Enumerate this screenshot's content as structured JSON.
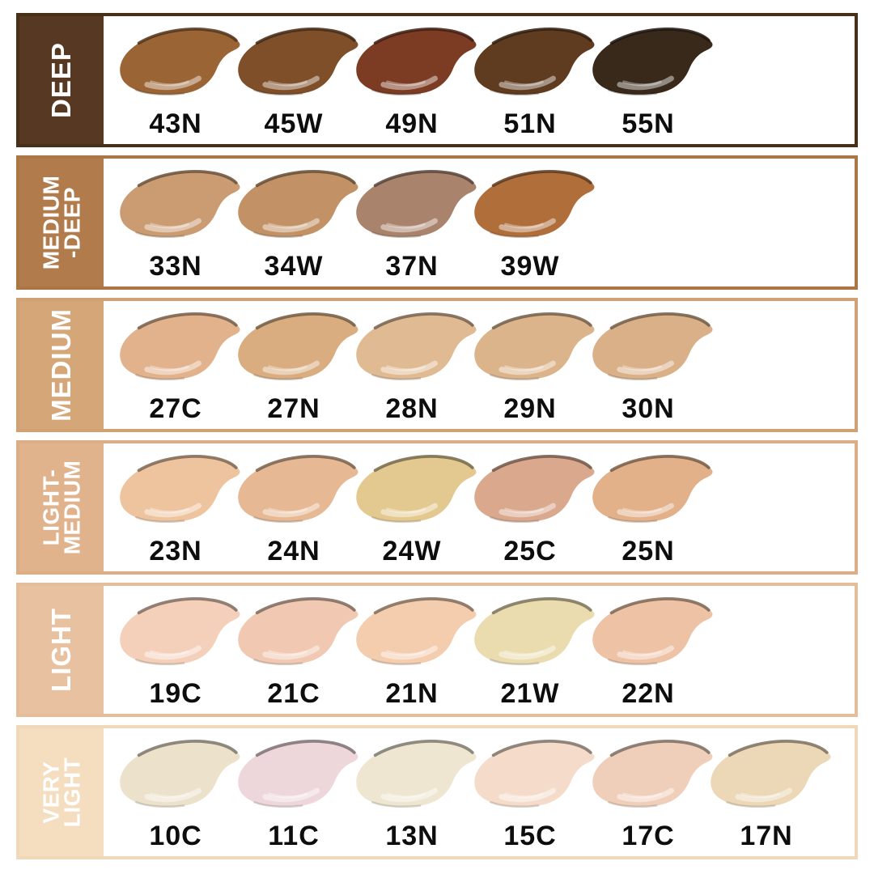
{
  "page": {
    "background": "#ffffff",
    "text_color": "#0d0d0d",
    "label_text_color": "#ffffff"
  },
  "rows": [
    {
      "category": "DEEP",
      "label": "DEEP",
      "accent": "#563823",
      "border": "#463019",
      "shades": [
        {
          "code": "43N",
          "color": "#9a6435"
        },
        {
          "code": "45W",
          "color": "#7e4f29"
        },
        {
          "code": "49N",
          "color": "#7c3b23"
        },
        {
          "code": "51N",
          "color": "#5f3b20"
        },
        {
          "code": "55N",
          "color": "#39291b"
        }
      ]
    },
    {
      "category": "MEDIUM-DEEP",
      "label": "MEDIUM\n-DEEP",
      "accent": "#b17b4c",
      "border": "#ab7546",
      "shades": [
        {
          "code": "33N",
          "color": "#cb9c72"
        },
        {
          "code": "34W",
          "color": "#c29266"
        },
        {
          "code": "37N",
          "color": "#a9836c"
        },
        {
          "code": "39W",
          "color": "#b06e3b"
        }
      ]
    },
    {
      "category": "MEDIUM",
      "label": "MEDIUM",
      "accent": "#d4a678",
      "border": "#cfa173",
      "shades": [
        {
          "code": "27C",
          "color": "#e2b28d"
        },
        {
          "code": "27N",
          "color": "#d9ad80"
        },
        {
          "code": "28N",
          "color": "#e0ba92"
        },
        {
          "code": "29N",
          "color": "#dcb48b"
        },
        {
          "code": "30N",
          "color": "#dab088"
        }
      ]
    },
    {
      "category": "LIGHT-MEDIUM",
      "label": "LIGHT-\nMEDIUM",
      "accent": "#e0b38d",
      "border": "#dcae88",
      "shades": [
        {
          "code": "23N",
          "color": "#eec49f"
        },
        {
          "code": "24N",
          "color": "#e6b893"
        },
        {
          "code": "24W",
          "color": "#e3c98f"
        },
        {
          "code": "25C",
          "color": "#d9a88d"
        },
        {
          "code": "25N",
          "color": "#e2b089"
        }
      ]
    },
    {
      "category": "LIGHT",
      "label": "LIGHT",
      "accent": "#e8c2a0",
      "border": "#e4bd9a",
      "shades": [
        {
          "code": "19C",
          "color": "#f4cfba"
        },
        {
          "code": "21C",
          "color": "#f1c9b2"
        },
        {
          "code": "21N",
          "color": "#f4ccae"
        },
        {
          "code": "21W",
          "color": "#eadcae"
        },
        {
          "code": "22N",
          "color": "#eec2a4"
        }
      ]
    },
    {
      "category": "VERY LIGHT",
      "label": "VERY\nLIGHT",
      "accent": "#f4debf",
      "border": "#f0d9ba",
      "shades": [
        {
          "code": "10C",
          "color": "#ece2cb"
        },
        {
          "code": "11C",
          "color": "#eed7db"
        },
        {
          "code": "13N",
          "color": "#efe6d1"
        },
        {
          "code": "15C",
          "color": "#f5dcca"
        },
        {
          "code": "17C",
          "color": "#f0cfba"
        },
        {
          "code": "17N",
          "color": "#ecd8b7"
        }
      ]
    }
  ],
  "chart_data": {
    "type": "table",
    "title": "Foundation shade range chart",
    "categories": [
      "DEEP",
      "MEDIUM-DEEP",
      "MEDIUM",
      "LIGHT-MEDIUM",
      "LIGHT",
      "VERY LIGHT"
    ],
    "series": [
      {
        "name": "DEEP",
        "values": [
          "43N",
          "45W",
          "49N",
          "51N",
          "55N"
        ]
      },
      {
        "name": "MEDIUM-DEEP",
        "values": [
          "33N",
          "34W",
          "37N",
          "39W"
        ]
      },
      {
        "name": "MEDIUM",
        "values": [
          "27C",
          "27N",
          "28N",
          "29N",
          "30N"
        ]
      },
      {
        "name": "LIGHT-MEDIUM",
        "values": [
          "23N",
          "24N",
          "24W",
          "25C",
          "25N"
        ]
      },
      {
        "name": "LIGHT",
        "values": [
          "19C",
          "21C",
          "21N",
          "21W",
          "22N"
        ]
      },
      {
        "name": "VERY LIGHT",
        "values": [
          "10C",
          "11C",
          "13N",
          "15C",
          "17C",
          "17N"
        ]
      }
    ],
    "legend_position": "left-sidebar",
    "grid": false
  }
}
